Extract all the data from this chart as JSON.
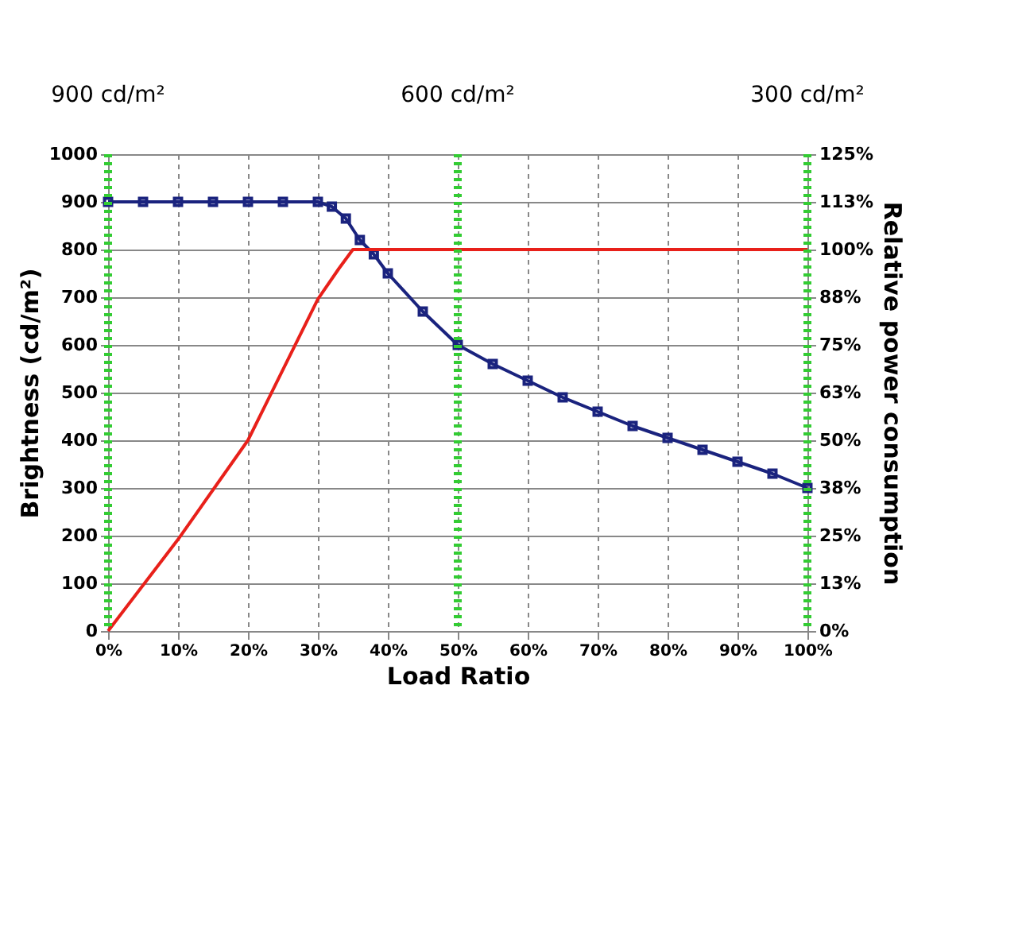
{
  "chart_data": {
    "type": "line",
    "xlabel": "Load Ratio",
    "ylabel": "Brightness (cd/m²)",
    "y2label": "Relative power consumption",
    "annotations": [
      "900 cd/m²",
      "600 cd/m²",
      "300 cd/m²"
    ],
    "series": [
      {
        "color": "#1a237e",
        "marker": "square",
        "x": [
          0,
          5,
          10,
          15,
          20,
          25,
          30,
          32,
          34,
          36,
          38,
          40,
          45,
          50,
          55,
          60,
          65,
          70,
          75,
          80,
          85,
          90,
          95,
          100
        ],
        "values": [
          900,
          900,
          900,
          900,
          900,
          900,
          900,
          890,
          865,
          820,
          790,
          750,
          670,
          600,
          560,
          525,
          490,
          460,
          430,
          405,
          380,
          355,
          330,
          300
        ]
      },
      {
        "color": "#e8201a",
        "axis": "y2",
        "x": [
          0,
          10,
          20,
          30,
          33,
          35,
          40,
          50,
          60,
          70,
          80,
          90,
          100
        ],
        "values": [
          0,
          24,
          50,
          87,
          95,
          100,
          100,
          100,
          100,
          100,
          100,
          100,
          100
        ]
      }
    ],
    "xlim": [
      0,
      100
    ],
    "xticks": [
      {
        "value": 0,
        "label": "0%"
      },
      {
        "value": 10,
        "label": "10%"
      },
      {
        "value": 20,
        "label": "20%"
      },
      {
        "value": 30,
        "label": "30%"
      },
      {
        "value": 40,
        "label": "40%"
      },
      {
        "value": 50,
        "label": "50%"
      },
      {
        "value": 60,
        "label": "60%"
      },
      {
        "value": 70,
        "label": "70%"
      },
      {
        "value": 80,
        "label": "80%"
      },
      {
        "value": 90,
        "label": "90%"
      },
      {
        "value": 100,
        "label": "100%"
      }
    ],
    "ylim": [
      0,
      1000
    ],
    "yticks": [
      0,
      100,
      200,
      300,
      400,
      500,
      600,
      700,
      800,
      900,
      1000
    ],
    "y2lim": [
      0,
      125
    ],
    "y2ticks": [
      {
        "value": 0,
        "label": "0%"
      },
      {
        "value": 12.5,
        "label": "13%"
      },
      {
        "value": 25,
        "label": "25%"
      },
      {
        "value": 37.5,
        "label": "38%"
      },
      {
        "value": 50,
        "label": "50%"
      },
      {
        "value": 62.5,
        "label": "63%"
      },
      {
        "value": 75,
        "label": "75%"
      },
      {
        "value": 87.5,
        "label": "88%"
      },
      {
        "value": 100,
        "label": "100%"
      },
      {
        "value": 112.5,
        "label": "113%"
      },
      {
        "value": 125,
        "label": "125%"
      }
    ],
    "ref_lines": [
      {
        "axis": "x",
        "value": 0,
        "color": "#33cc33",
        "line_style": "dotted"
      },
      {
        "axis": "x",
        "value": 50,
        "color": "#33cc33",
        "line_style": "dotted"
      },
      {
        "axis": "x",
        "value": 100,
        "color": "#33cc33",
        "line_style": "dotted"
      }
    ],
    "grid": true,
    "line_style": "solid"
  }
}
